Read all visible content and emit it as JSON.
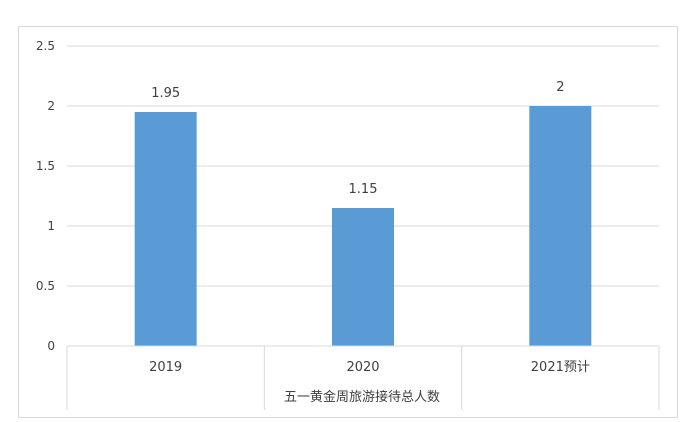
{
  "chart_data": {
    "type": "bar",
    "categories": [
      "2019",
      "2020",
      "2021预计"
    ],
    "values": [
      1.95,
      1.15,
      2
    ],
    "data_labels": [
      "1.95",
      "1.15",
      "2"
    ],
    "xlabel": "五一黄金周旅游接待总人数",
    "ylabel": "",
    "ylim": [
      0,
      2.5
    ],
    "yticks": [
      "0",
      "0.5",
      "1",
      "1.5",
      "2",
      "2.5"
    ],
    "grid": true,
    "legend": "none",
    "bar_color": "#5b9bd5",
    "grid_color": "#d9d9d9",
    "text_color": "#404040"
  }
}
